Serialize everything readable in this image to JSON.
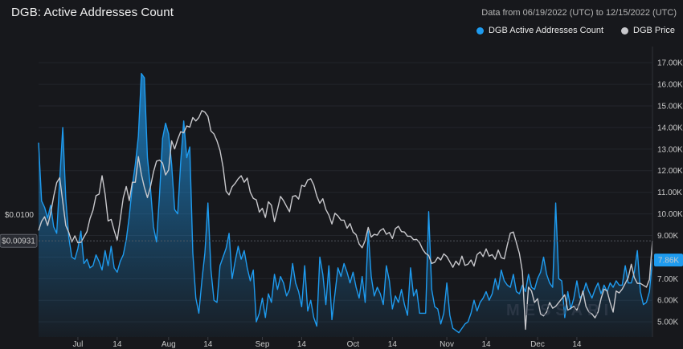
{
  "header": {
    "title": "DGB: Active Addresses Count",
    "range": "Data from 06/19/2022 (UTC) to 12/15/2022 (UTC)"
  },
  "legend": {
    "active_label": "DGB Active Addresses Count",
    "price_label": "DGB Price"
  },
  "watermark": "MESSARI",
  "colors": {
    "active": "#1e9bef",
    "price": "#c8c8cc",
    "background": "#17181c"
  },
  "chart_data": {
    "type": "line",
    "title": "DGB: Active Addresses Count",
    "x_ticks": [
      "Jul",
      "14",
      "Aug",
      "14",
      "Sep",
      "14",
      "Oct",
      "14",
      "Nov",
      "14",
      "Dec",
      "14"
    ],
    "x_tick_index": [
      13,
      26,
      43,
      56,
      74,
      87,
      104,
      117,
      135,
      148,
      165,
      178
    ],
    "y_right_ticks": [
      "5.00K",
      "6.00K",
      "7.00K",
      "8.00K",
      "9.00K",
      "10.00K",
      "11.00K",
      "12.00K",
      "13.00K",
      "14.00K",
      "15.00K",
      "16.00K",
      "17.00K"
    ],
    "y_right_range": [
      4300,
      17600
    ],
    "y_left_ticks": [
      "$0.0100"
    ],
    "y_left_tick_values": [
      0.01
    ],
    "y_left_range": [
      0.0068,
      0.0143
    ],
    "current_price_label": "$0.00931",
    "current_price": 0.00931,
    "current_active_label": "7.86K",
    "current_active": 7860,
    "series": [
      {
        "name": "DGB Active Addresses Count",
        "axis": "right",
        "values": [
          13300,
          10600,
          10300,
          9800,
          10400,
          9400,
          9100,
          11600,
          14000,
          10700,
          8900,
          8000,
          7900,
          8400,
          9200,
          7700,
          7900,
          7500,
          7600,
          8100,
          7800,
          7400,
          8300,
          7600,
          8500,
          7500,
          7300,
          7800,
          8100,
          8800,
          9900,
          11300,
          12300,
          13600,
          16500,
          16300,
          12600,
          11200,
          9400,
          8700,
          10900,
          13500,
          14200,
          13700,
          12300,
          10200,
          10000,
          12400,
          14300,
          12600,
          13100,
          8200,
          6100,
          5400,
          6900,
          8200,
          10500,
          7400,
          6000,
          5900,
          7600,
          8000,
          8400,
          9100,
          7000,
          7800,
          8500,
          7900,
          8300,
          7500,
          6900,
          7400,
          5000,
          5400,
          6100,
          5200,
          6300,
          5900,
          7200,
          6500,
          7100,
          6800,
          6200,
          6500,
          7700,
          6800,
          6400,
          5700,
          7600,
          5500,
          6000,
          5200,
          4800,
          8000,
          7200,
          5800,
          7600,
          5100,
          6300,
          7500,
          7100,
          7700,
          7300,
          6800,
          7300,
          6600,
          6100,
          7100,
          5900,
          9200,
          7100,
          6200,
          6600,
          6300,
          5800,
          7600,
          6900,
          5600,
          6200,
          5900,
          6500,
          5800,
          5300,
          7500,
          6200,
          6500,
          5400,
          5400,
          5400,
          10100,
          6500,
          5700,
          5600,
          4900,
          5400,
          6800,
          5300,
          4700,
          4600,
          4500,
          4700,
          4900,
          5000,
          5400,
          6000,
          5500,
          5900,
          6100,
          6400,
          6000,
          6300,
          7000,
          6500,
          7400,
          6900,
          6700,
          6600,
          7200,
          6400,
          6300,
          6700,
          6400,
          7200,
          6600,
          6500,
          7000,
          7300,
          8000,
          7200,
          6800,
          6600,
          10500,
          7000,
          6900,
          5200,
          6400,
          5600,
          6100,
          6900,
          6100,
          6300,
          6800,
          6400,
          6100,
          6500,
          6800,
          6300,
          6700,
          6400,
          6800,
          6600,
          6900,
          6700,
          6700,
          7600,
          6800,
          6800,
          7300,
          8300,
          6400,
          5800,
          5900,
          6400,
          7900
        ]
      },
      {
        "name": "DGB Price",
        "axis": "left",
        "values": [
          0.00958,
          0.00982,
          0.00994,
          0.00971,
          0.01003,
          0.01047,
          0.01083,
          0.01096,
          0.01033,
          0.00971,
          0.00953,
          0.00928,
          0.00944,
          0.00926,
          0.00927,
          0.00941,
          0.00955,
          0.00989,
          0.01011,
          0.01049,
          0.01053,
          0.01101,
          0.01053,
          0.00983,
          0.00987,
          0.00958,
          0.00933,
          0.00987,
          0.01043,
          0.01073,
          0.01036,
          0.01084,
          0.01084,
          0.01151,
          0.01104,
          0.0107,
          0.01044,
          0.01072,
          0.01111,
          0.01139,
          0.01142,
          0.01134,
          0.01103,
          0.01116,
          0.01192,
          0.01171,
          0.01196,
          0.01216,
          0.01213,
          0.01231,
          0.01228,
          0.01253,
          0.01244,
          0.01253,
          0.01271,
          0.01267,
          0.01256,
          0.01218,
          0.0121,
          0.01192,
          0.01167,
          0.01124,
          0.01061,
          0.01051,
          0.01072,
          0.01081,
          0.01093,
          0.01101,
          0.01084,
          0.01095,
          0.01058,
          0.01042,
          0.01038,
          0.01006,
          0.01016,
          0.00992,
          0.01033,
          0.01024,
          0.00981,
          0.01013,
          0.01047,
          0.01036,
          0.01021,
          0.01007,
          0.01047,
          0.01049,
          0.0104,
          0.01076,
          0.01073,
          0.0109,
          0.01093,
          0.01077,
          0.01048,
          0.01029,
          0.01041,
          0.01013,
          0.00998,
          0.00975,
          0.01003,
          0.00996,
          0.00985,
          0.00985,
          0.00964,
          0.00976,
          0.00954,
          0.00947,
          0.00923,
          0.00913,
          0.00932,
          0.00966,
          0.00941,
          0.00948,
          0.00946,
          0.00958,
          0.00963,
          0.00948,
          0.00953,
          0.00937,
          0.00963,
          0.00969,
          0.00955,
          0.00954,
          0.00943,
          0.00943,
          0.00934,
          0.00935,
          0.00926,
          0.00909,
          0.00898,
          0.00893,
          0.00872,
          0.00875,
          0.00888,
          0.00881,
          0.00897,
          0.0089,
          0.00876,
          0.00862,
          0.00878,
          0.00868,
          0.00891,
          0.00867,
          0.0087,
          0.00881,
          0.00865,
          0.00895,
          0.00902,
          0.0089,
          0.0091,
          0.00891,
          0.00895,
          0.00883,
          0.00907,
          0.00887,
          0.00884,
          0.0092,
          0.00951,
          0.00954,
          0.00926,
          0.00898,
          0.0085,
          0.007,
          0.0081,
          0.008,
          0.0077,
          0.0078,
          0.0074,
          0.00735,
          0.00745,
          0.0077,
          0.00755,
          0.0076,
          0.0077,
          0.0078,
          0.0079,
          0.0075,
          0.00755,
          0.0076,
          0.0075,
          0.0077,
          0.008,
          0.0076,
          0.00745,
          0.0074,
          0.0073,
          0.00745,
          0.0078,
          0.00805,
          0.008,
          0.0077,
          0.00745,
          0.008,
          0.00795,
          0.00805,
          0.0082,
          0.00835,
          0.0087,
          0.00835,
          0.0082,
          0.0082,
          0.00815,
          0.0081,
          0.0083,
          0.00931
        ]
      }
    ]
  }
}
